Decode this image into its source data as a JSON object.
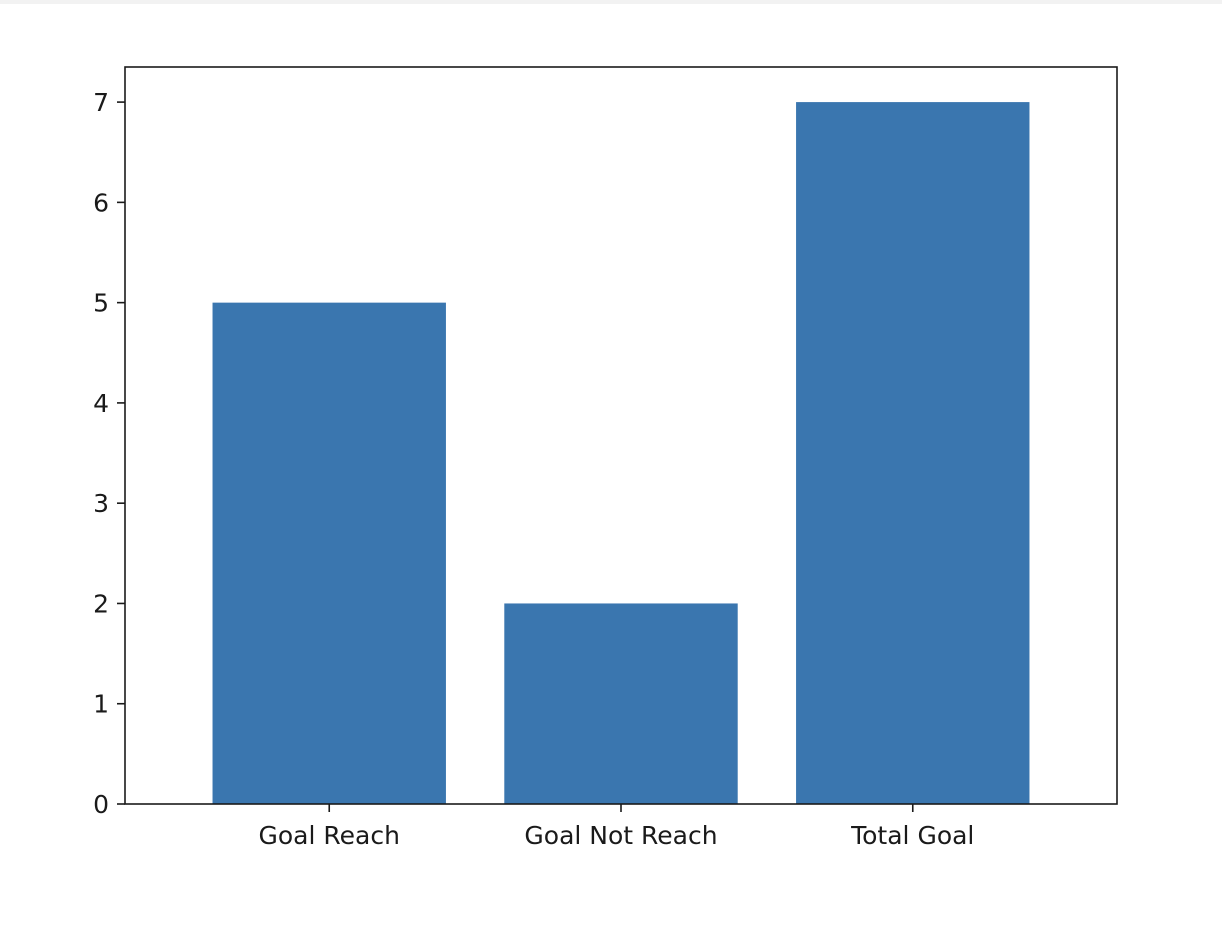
{
  "chart_data": {
    "type": "bar",
    "categories": [
      "Goal Reach",
      "Goal Not Reach",
      "Total Goal"
    ],
    "values": [
      5,
      2,
      7
    ],
    "title": "",
    "xlabel": "",
    "ylabel": "",
    "ylim": [
      0,
      7.35
    ],
    "yticks": [
      0,
      1,
      2,
      3,
      4,
      5,
      6,
      7
    ],
    "bar_color": "#3a76af",
    "grid": false,
    "legend": "none"
  }
}
